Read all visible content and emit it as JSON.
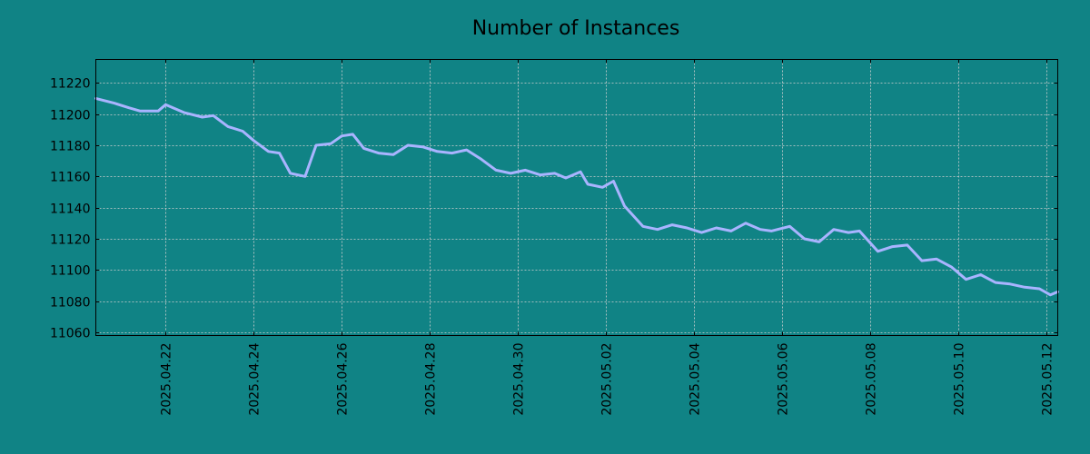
{
  "chart_data": {
    "type": "line",
    "title": "Number of Instances",
    "xlabel": "",
    "ylabel": "",
    "x_ticks": [
      "2025.04.22",
      "2025.04.24",
      "2025.04.26",
      "2025.04.28",
      "2025.04.30",
      "2025.05.02",
      "2025.05.04",
      "2025.05.06",
      "2025.05.08",
      "2025.05.10",
      "2025.05.12"
    ],
    "y_ticks": [
      11060,
      11080,
      11100,
      11120,
      11140,
      11160,
      11180,
      11200,
      11220
    ],
    "xlim": [
      "2025-04-20T10:00",
      "2025-05-12T06:00"
    ],
    "ylim": [
      11058,
      11235
    ],
    "grid": true,
    "legend": "none",
    "colors": {
      "background": "#108385",
      "line": "#a9b4ff",
      "grid": "#d0d0d0",
      "axis": "#000000"
    },
    "series": [
      {
        "x": [
          "2025-04-20T10:00",
          "2025-04-20T20:00",
          "2025-04-21T04:00",
          "2025-04-21T10:00",
          "2025-04-21T20:00",
          "2025-04-22T00:00",
          "2025-04-22T10:00",
          "2025-04-22T20:00",
          "2025-04-23T02:00",
          "2025-04-23T10:00",
          "2025-04-23T18:00",
          "2025-04-24T00:00",
          "2025-04-24T08:00",
          "2025-04-24T14:00",
          "2025-04-24T20:00",
          "2025-04-25T04:00",
          "2025-04-25T10:00",
          "2025-04-25T18:00",
          "2025-04-26T00:00",
          "2025-04-26T06:00",
          "2025-04-26T12:00",
          "2025-04-26T20:00",
          "2025-04-27T04:00",
          "2025-04-27T12:00",
          "2025-04-27T20:00",
          "2025-04-28T04:00",
          "2025-04-28T12:00",
          "2025-04-28T20:00",
          "2025-04-29T04:00",
          "2025-04-29T12:00",
          "2025-04-29T20:00",
          "2025-04-30T04:00",
          "2025-04-30T12:00",
          "2025-04-30T20:00",
          "2025-05-01T02:00",
          "2025-05-01T10:00",
          "2025-05-01T14:00",
          "2025-05-01T22:00",
          "2025-05-02T04:00",
          "2025-05-02T10:00",
          "2025-05-02T20:00",
          "2025-05-03T04:00",
          "2025-05-03T12:00",
          "2025-05-03T20:00",
          "2025-05-04T04:00",
          "2025-05-04T12:00",
          "2025-05-04T20:00",
          "2025-05-05T04:00",
          "2025-05-05T12:00",
          "2025-05-05T18:00",
          "2025-05-06T04:00",
          "2025-05-06T12:00",
          "2025-05-06T20:00",
          "2025-05-07T04:00",
          "2025-05-07T12:00",
          "2025-05-07T18:00",
          "2025-05-08T04:00",
          "2025-05-08T12:00",
          "2025-05-08T20:00",
          "2025-05-09T04:00",
          "2025-05-09T12:00",
          "2025-05-09T20:00",
          "2025-05-10T04:00",
          "2025-05-10T12:00",
          "2025-05-10T20:00",
          "2025-05-11T04:00",
          "2025-05-11T12:00",
          "2025-05-11T20:00",
          "2025-05-12T02:00",
          "2025-05-12T06:00"
        ],
        "y": [
          11210,
          11207,
          11204,
          11202,
          11202,
          11206,
          11201,
          11198,
          11199,
          11192,
          11189,
          11183,
          11176,
          11175,
          11162,
          11160,
          11180,
          11181,
          11186,
          11187,
          11178,
          11175,
          11174,
          11180,
          11179,
          11176,
          11175,
          11177,
          11171,
          11164,
          11162,
          11164,
          11161,
          11162,
          11159,
          11163,
          11155,
          11153,
          11157,
          11141,
          11128,
          11126,
          11129,
          11127,
          11124,
          11127,
          11125,
          11130,
          11126,
          11125,
          11128,
          11120,
          11118,
          11126,
          11124,
          11125,
          11112,
          11115,
          11116,
          11106,
          11107,
          11102,
          11094,
          11097,
          11092,
          11091,
          11089,
          11088,
          11084,
          11086
        ]
      }
    ]
  }
}
